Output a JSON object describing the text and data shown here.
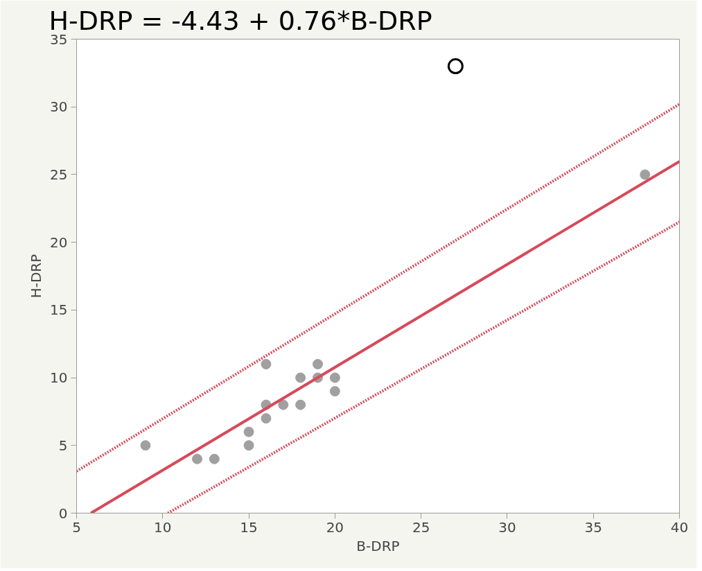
{
  "chart_data": {
    "type": "scatter",
    "title": "H-DRP = -4.43 + 0.76*B-DRP",
    "xlabel": "B-DRP",
    "ylabel": "H-DRP",
    "xlim": [
      5,
      40
    ],
    "ylim": [
      0,
      35
    ],
    "xticks": [
      5,
      10,
      15,
      20,
      25,
      30,
      35,
      40
    ],
    "yticks": [
      0,
      5,
      10,
      15,
      20,
      25,
      30,
      35
    ],
    "grid": false,
    "series": [
      {
        "color": "#a0a0a0",
        "marker": "circle",
        "x": [
          9,
          12,
          13,
          15,
          15,
          16,
          16,
          16,
          17,
          18,
          18,
          19,
          19,
          20,
          20,
          38
        ],
        "values": [
          5,
          4,
          4,
          5,
          6,
          7,
          8,
          11,
          8,
          8,
          10,
          10,
          11,
          10,
          9,
          25
        ]
      },
      {
        "color": "#000000",
        "marker": "circle",
        "x": [
          27
        ],
        "values": [
          33
        ]
      },
      {
        "type": "line",
        "color": "#d64a5a",
        "line_style": "solid",
        "x": [
          5.83,
          40
        ],
        "values": [
          0,
          25.97
        ]
      },
      {
        "type": "line",
        "color": "#d64a5a",
        "line_style": "dotted",
        "x": [
          5,
          40
        ],
        "values": [
          3.1,
          30.2
        ]
      },
      {
        "type": "line",
        "color": "#d64a5a",
        "line_style": "dotted",
        "x": [
          10.3,
          40
        ],
        "values": [
          0,
          21.5
        ]
      }
    ]
  }
}
